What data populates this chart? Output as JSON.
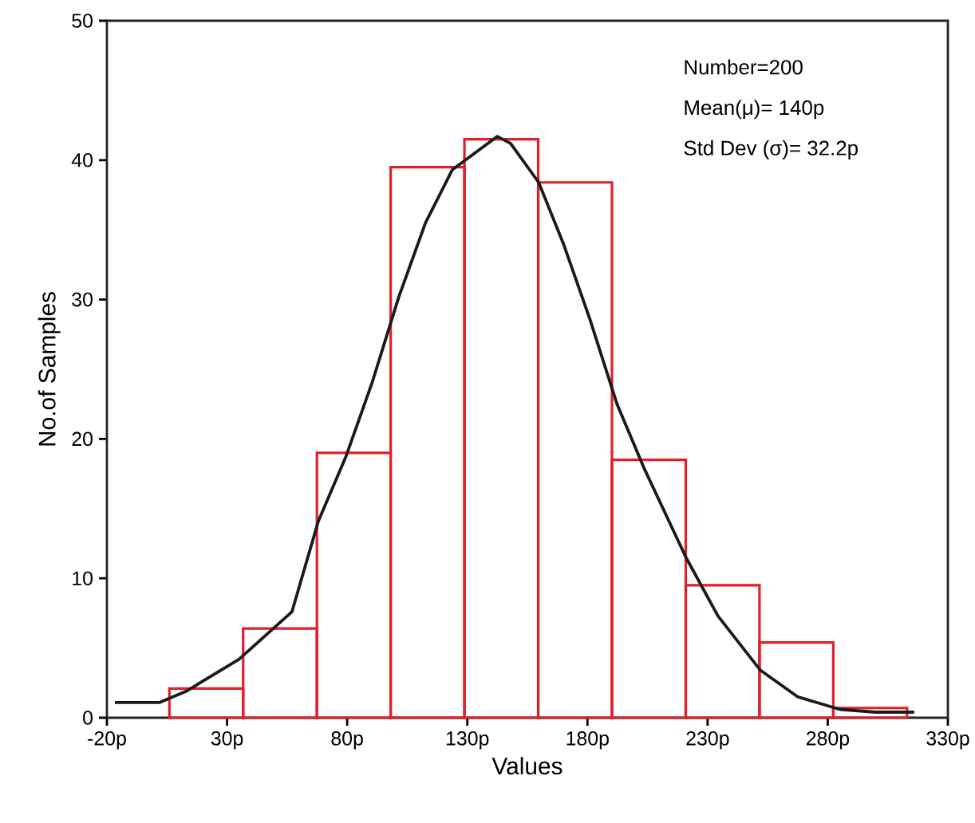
{
  "chart_data": {
    "type": "histogram",
    "xlabel": "Values",
    "ylabel": "No.of Samples",
    "annotations": [
      "Number=200",
      "Mean(μ)= 140p",
      "Std Dev (σ)= 32.2p"
    ],
    "xlim": [
      -20,
      330
    ],
    "xticks": [
      {
        "value": -20,
        "label": "-20p"
      },
      {
        "value": 30,
        "label": "30p"
      },
      {
        "value": 80,
        "label": "80p"
      },
      {
        "value": 130,
        "label": "130p"
      },
      {
        "value": 180,
        "label": "180p"
      },
      {
        "value": 230,
        "label": "230p"
      },
      {
        "value": 280,
        "label": "280p"
      },
      {
        "value": 330,
        "label": "330p"
      }
    ],
    "ylim": [
      0,
      50
    ],
    "yticks": [
      0,
      10,
      20,
      30,
      40,
      50
    ],
    "series": [
      {
        "color": "#e0202a",
        "bins": [
          6,
          36.7,
          67.4,
          98.1,
          128.8,
          159.5,
          190.2,
          220.9,
          251.6,
          282.3,
          313
        ],
        "values": [
          2.1,
          6.4,
          19.0,
          39.5,
          41.5,
          38.4,
          18.5,
          9.5,
          5.4,
          0.7
        ]
      },
      {
        "type": "line",
        "color": "#1a1a1a",
        "x": [
          -16.7,
          2,
          13,
          35,
          57,
          68,
          79.4,
          90.3,
          101.5,
          112.6,
          123.7,
          142.5,
          148,
          159.7,
          170,
          181,
          192.3,
          203.3,
          221,
          234.3,
          252,
          267.5,
          285,
          300,
          316
        ],
        "values": [
          1.1,
          1.1,
          1.9,
          4.2,
          7.6,
          14.1,
          18.7,
          24,
          30.2,
          35.5,
          39.3,
          41.7,
          41.2,
          38.4,
          34,
          28.6,
          22.5,
          18,
          11.5,
          7.3,
          3.4,
          1.5,
          0.6,
          0.4,
          0.4
        ]
      }
    ]
  }
}
